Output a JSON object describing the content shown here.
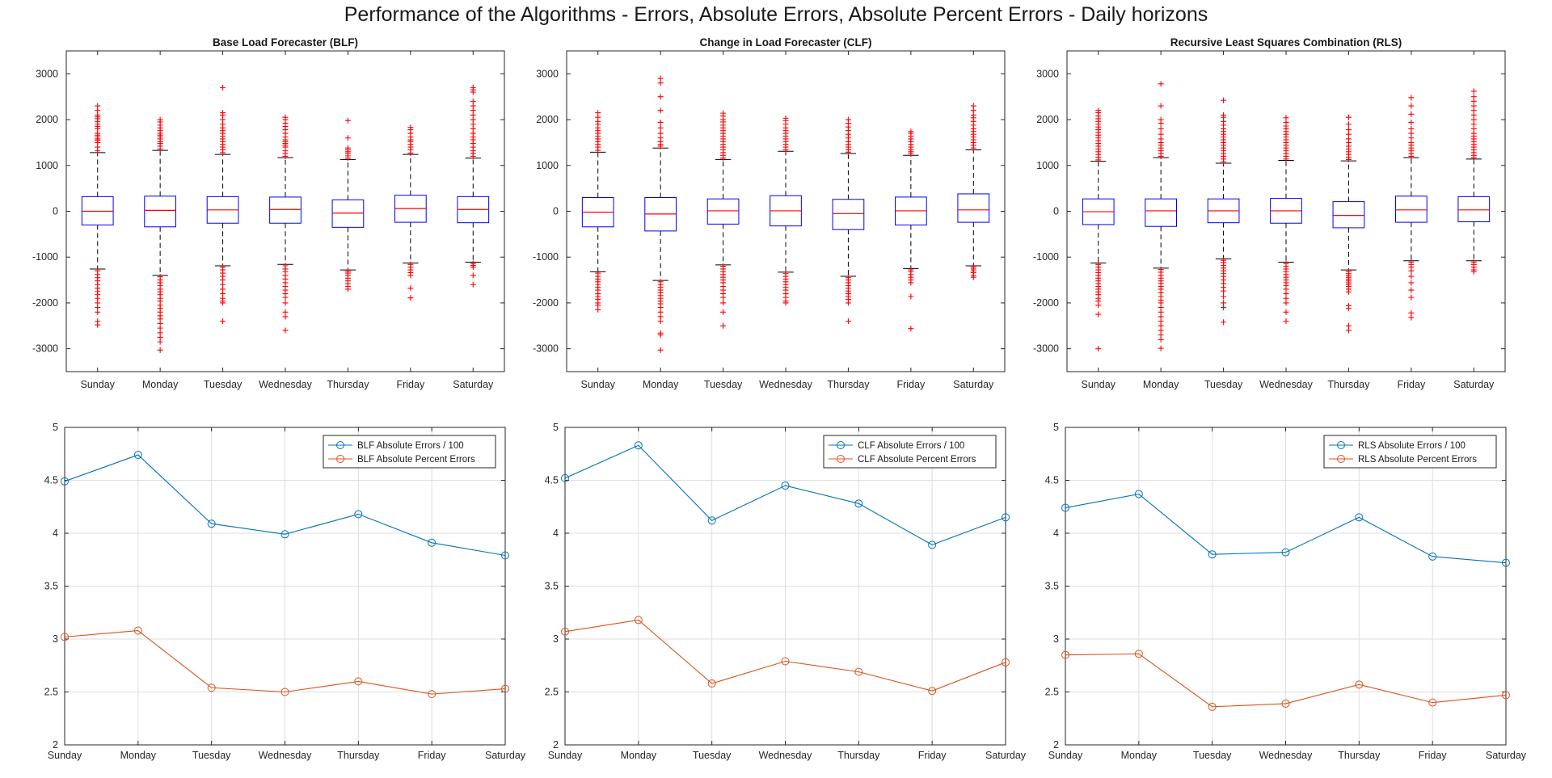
{
  "figure_title": "Performance of the Algorithms - Errors, Absolute Errors, Absolute Percent Errors - Daily horizons",
  "colors": {
    "box": "#0000ff",
    "median": "#ff0000",
    "outlier": "#ff0000",
    "whisker": "#000000",
    "series_abs": "#0072bd",
    "series_pct": "#d95319",
    "grid": "#dedede"
  },
  "chart_data": [
    {
      "type": "box",
      "title": "Base Load Forecaster (BLF)",
      "categories": [
        "Sunday",
        "Monday",
        "Tuesday",
        "Wednesday",
        "Thursday",
        "Friday",
        "Saturday"
      ],
      "ylim": [
        -3500,
        3500
      ],
      "yticks": [
        -3000,
        -2000,
        -1000,
        0,
        1000,
        2000,
        3000
      ],
      "grid": false,
      "boxes": [
        {
          "q1": -300,
          "median": 0,
          "q3": 320,
          "whisker_low": -1260,
          "whisker_high": 1280,
          "outliers_high": [
            1320,
            1400,
            1500,
            1550,
            1580,
            1620,
            1660,
            1700,
            1800,
            1850,
            1900,
            1960,
            2020,
            2060,
            2100,
            2200,
            2300
          ],
          "outliers_low": [
            -1300,
            -1380,
            -1450,
            -1520,
            -1600,
            -1680,
            -1750,
            -1820,
            -1900,
            -2000,
            -2100,
            -2200,
            -2400,
            -2480
          ]
        },
        {
          "q1": -340,
          "median": 20,
          "q3": 330,
          "whisker_low": -1400,
          "whisker_high": 1330,
          "outliers_high": [
            1360,
            1420,
            1480,
            1520,
            1580,
            1620,
            1660,
            1700,
            1760,
            1820,
            1880,
            1950,
            2000
          ],
          "outliers_low": [
            -1430,
            -1500,
            -1560,
            -1620,
            -1700,
            -1760,
            -1820,
            -1900,
            -1960,
            -2050,
            -2120,
            -2200,
            -2280,
            -2350,
            -2450,
            -2550,
            -2650,
            -2750,
            -2850,
            -3030
          ]
        },
        {
          "q1": -260,
          "median": 30,
          "q3": 320,
          "whisker_low": -1190,
          "whisker_high": 1240,
          "outliers_high": [
            1280,
            1340,
            1400,
            1460,
            1520,
            1580,
            1640,
            1700,
            1760,
            1820,
            1900,
            2000,
            2100,
            2150,
            2700
          ],
          "outliers_low": [
            -1220,
            -1280,
            -1350,
            -1420,
            -1500,
            -1600,
            -1700,
            -1800,
            -1900,
            -1960,
            -2000,
            -2400
          ]
        },
        {
          "q1": -260,
          "median": 40,
          "q3": 310,
          "whisker_low": -1160,
          "whisker_high": 1170,
          "outliers_high": [
            1200,
            1260,
            1320,
            1400,
            1440,
            1480,
            1520,
            1560,
            1620,
            1700,
            1780,
            1850,
            1920,
            2000,
            2050
          ],
          "outliers_low": [
            -1190,
            -1260,
            -1320,
            -1400,
            -1480,
            -1560,
            -1640,
            -1720,
            -1800,
            -1880,
            -2000,
            -2200,
            -2300,
            -2600
          ]
        },
        {
          "q1": -350,
          "median": -40,
          "q3": 250,
          "whisker_low": -1280,
          "whisker_high": 1130,
          "outliers_high": [
            1160,
            1210,
            1260,
            1300,
            1340,
            1380,
            1600,
            1980
          ],
          "outliers_low": [
            -1310,
            -1350,
            -1400,
            -1460,
            -1520,
            -1580,
            -1640,
            -1700
          ]
        },
        {
          "q1": -240,
          "median": 60,
          "q3": 350,
          "whisker_low": -1130,
          "whisker_high": 1240,
          "outliers_high": [
            1270,
            1340,
            1400,
            1460,
            1520,
            1560,
            1620,
            1700,
            1780,
            1830
          ],
          "outliers_low": [
            -1160,
            -1220,
            -1280,
            -1340,
            -1400,
            -1680,
            -1890
          ]
        },
        {
          "q1": -250,
          "median": 40,
          "q3": 320,
          "whisker_low": -1110,
          "whisker_high": 1160,
          "outliers_high": [
            1200,
            1260,
            1320,
            1400,
            1480,
            1560,
            1620,
            1700,
            1800,
            1900,
            2000,
            2100,
            2200,
            2300,
            2400,
            2600,
            2650,
            2700
          ],
          "outliers_low": [
            -1140,
            -1180,
            -1220,
            -1400,
            -1600
          ]
        }
      ]
    },
    {
      "type": "box",
      "title": "Change in Load Forecaster (CLF)",
      "categories": [
        "Sunday",
        "Monday",
        "Tuesday",
        "Wednesday",
        "Thursday",
        "Friday",
        "Saturday"
      ],
      "ylim": [
        -3500,
        3500
      ],
      "yticks": [
        -3000,
        -2000,
        -1000,
        0,
        1000,
        2000,
        3000
      ],
      "grid": false,
      "boxes": [
        {
          "q1": -340,
          "median": -20,
          "q3": 300,
          "whisker_low": -1320,
          "whisker_high": 1290,
          "outliers_high": [
            1330,
            1400,
            1460,
            1520,
            1580,
            1640,
            1700,
            1760,
            1820,
            1900,
            1960,
            2050,
            2150
          ],
          "outliers_low": [
            -1350,
            -1420,
            -1480,
            -1540,
            -1600,
            -1660,
            -1720,
            -1800,
            -1860,
            -1920,
            -2000,
            -2050,
            -2150
          ]
        },
        {
          "q1": -430,
          "median": -60,
          "q3": 300,
          "whisker_low": -1510,
          "whisker_high": 1380,
          "outliers_high": [
            1420,
            1460,
            1520,
            1600,
            1700,
            1820,
            1940,
            2200,
            2500,
            2800,
            2900
          ],
          "outliers_low": [
            -1540,
            -1600,
            -1660,
            -1720,
            -1780,
            -1840,
            -1900,
            -1960,
            -2020,
            -2100,
            -2200,
            -2300,
            -2400,
            -2660,
            -2700,
            -3030
          ]
        },
        {
          "q1": -280,
          "median": 10,
          "q3": 270,
          "whisker_low": -1170,
          "whisker_high": 1130,
          "outliers_high": [
            1160,
            1220,
            1280,
            1340,
            1400,
            1460,
            1520,
            1580,
            1640,
            1700,
            1760,
            1820,
            1880,
            1950,
            2000,
            2080,
            2140
          ],
          "outliers_low": [
            -1200,
            -1260,
            -1320,
            -1380,
            -1440,
            -1500,
            -1560,
            -1640,
            -1720,
            -1800,
            -1880,
            -2000,
            -2200,
            -2500
          ]
        },
        {
          "q1": -320,
          "median": 10,
          "q3": 340,
          "whisker_low": -1330,
          "whisker_high": 1310,
          "outliers_high": [
            1340,
            1400,
            1460,
            1520,
            1580,
            1640,
            1700,
            1760,
            1820,
            1900,
            1980,
            2030
          ],
          "outliers_low": [
            -1360,
            -1420,
            -1480,
            -1540,
            -1600,
            -1660,
            -1720,
            -1800,
            -1880,
            -1960,
            -2000
          ]
        },
        {
          "q1": -400,
          "median": -50,
          "q3": 260,
          "whisker_low": -1420,
          "whisker_high": 1260,
          "outliers_high": [
            1290,
            1340,
            1400,
            1460,
            1520,
            1600,
            1680,
            1760,
            1840,
            1920,
            2000
          ],
          "outliers_low": [
            -1450,
            -1500,
            -1560,
            -1620,
            -1680,
            -1740,
            -1800,
            -1860,
            -1920,
            -2000,
            -2400
          ]
        },
        {
          "q1": -300,
          "median": 10,
          "q3": 310,
          "whisker_low": -1250,
          "whisker_high": 1220,
          "outliers_high": [
            1260,
            1300,
            1340,
            1400,
            1460,
            1520,
            1580,
            1640,
            1700,
            1740
          ],
          "outliers_low": [
            -1280,
            -1320,
            -1380,
            -1440,
            -1500,
            -1560,
            -1860,
            -2560
          ]
        },
        {
          "q1": -240,
          "median": 30,
          "q3": 380,
          "whisker_low": -1190,
          "whisker_high": 1340,
          "outliers_high": [
            1380,
            1440,
            1500,
            1560,
            1620,
            1680,
            1740,
            1800,
            1880,
            1960,
            2040,
            2100,
            2200,
            2300
          ],
          "outliers_low": [
            -1220,
            -1260,
            -1300,
            -1340,
            -1400,
            -1440
          ]
        }
      ]
    },
    {
      "type": "box",
      "title": "Recursive Least Squares Combination (RLS)",
      "categories": [
        "Sunday",
        "Monday",
        "Tuesday",
        "Wednesday",
        "Thursday",
        "Friday",
        "Saturday"
      ],
      "ylim": [
        -3500,
        3500
      ],
      "yticks": [
        -3000,
        -2000,
        -1000,
        0,
        1000,
        2000,
        3000
      ],
      "grid": false,
      "boxes": [
        {
          "q1": -290,
          "median": -10,
          "q3": 270,
          "whisker_low": -1130,
          "whisker_high": 1090,
          "outliers_high": [
            1120,
            1180,
            1240,
            1300,
            1360,
            1420,
            1480,
            1540,
            1600,
            1660,
            1720,
            1780,
            1840,
            1900,
            1960,
            2020,
            2080,
            2150,
            2200
          ],
          "outliers_low": [
            -1160,
            -1220,
            -1280,
            -1340,
            -1400,
            -1460,
            -1520,
            -1580,
            -1640,
            -1700,
            -1760,
            -1820,
            -1900,
            -1960,
            -2050,
            -2250,
            -3000
          ]
        },
        {
          "q1": -330,
          "median": 10,
          "q3": 270,
          "whisker_low": -1240,
          "whisker_high": 1170,
          "outliers_high": [
            1200,
            1260,
            1320,
            1380,
            1440,
            1500,
            1580,
            1680,
            1800,
            1920,
            2000,
            2300,
            2780
          ],
          "outliers_low": [
            -1270,
            -1330,
            -1400,
            -1460,
            -1520,
            -1580,
            -1640,
            -1700,
            -1780,
            -1860,
            -1940,
            -2000,
            -2100,
            -2200,
            -2300,
            -2400,
            -2500,
            -2600,
            -2700,
            -2800,
            -2990
          ]
        },
        {
          "q1": -250,
          "median": 10,
          "q3": 270,
          "whisker_low": -1040,
          "whisker_high": 1050,
          "outliers_high": [
            1080,
            1140,
            1200,
            1260,
            1320,
            1380,
            1440,
            1500,
            1560,
            1620,
            1680,
            1740,
            1800,
            1880,
            1960,
            2050,
            2100,
            2420
          ],
          "outliers_low": [
            -1070,
            -1120,
            -1180,
            -1240,
            -1300,
            -1360,
            -1420,
            -1500,
            -1580,
            -1660,
            -1740,
            -1860,
            -2000,
            -2100,
            -2420
          ]
        },
        {
          "q1": -260,
          "median": 10,
          "q3": 280,
          "whisker_low": -1110,
          "whisker_high": 1110,
          "outliers_high": [
            1140,
            1200,
            1260,
            1320,
            1380,
            1440,
            1500,
            1560,
            1620,
            1680,
            1740,
            1800,
            1860,
            1940,
            2040
          ],
          "outliers_low": [
            -1140,
            -1200,
            -1260,
            -1320,
            -1380,
            -1440,
            -1500,
            -1560,
            -1620,
            -1700,
            -1800,
            -1900,
            -2000,
            -2200,
            -2400
          ]
        },
        {
          "q1": -360,
          "median": -90,
          "q3": 210,
          "whisker_low": -1280,
          "whisker_high": 1100,
          "outliers_high": [
            1130,
            1180,
            1240,
            1300,
            1360,
            1420,
            1500,
            1580,
            1680,
            1780,
            1900,
            2050
          ],
          "outliers_low": [
            -1310,
            -1360,
            -1400,
            -1440,
            -1480,
            -1520,
            -1560,
            -1600,
            -1640,
            -1700,
            -1760,
            -2060,
            -2120,
            -2500,
            -2600
          ]
        },
        {
          "q1": -240,
          "median": 30,
          "q3": 330,
          "whisker_low": -1080,
          "whisker_high": 1170,
          "outliers_high": [
            1200,
            1260,
            1320,
            1380,
            1440,
            1500,
            1600,
            1700,
            1800,
            1940,
            2120,
            2300,
            2480
          ],
          "outliers_low": [
            -1110,
            -1160,
            -1220,
            -1300,
            -1420,
            -1560,
            -1720,
            -1880,
            -2220,
            -2320
          ]
        },
        {
          "q1": -230,
          "median": 30,
          "q3": 320,
          "whisker_low": -1080,
          "whisker_high": 1140,
          "outliers_high": [
            1170,
            1220,
            1280,
            1340,
            1400,
            1460,
            1520,
            1580,
            1640,
            1700,
            1800,
            1900,
            2000,
            2100,
            2200,
            2300,
            2400,
            2500,
            2620
          ],
          "outliers_low": [
            -1110,
            -1160,
            -1220,
            -1280,
            -1320
          ]
        }
      ]
    },
    {
      "type": "line",
      "x": [
        "Sunday",
        "Monday",
        "Tuesday",
        "Wednesday",
        "Thursday",
        "Friday",
        "Saturday"
      ],
      "ylim": [
        2,
        5
      ],
      "yticks": [
        "2",
        "2.5",
        "3",
        "3.5",
        "4",
        "4.5",
        "5"
      ],
      "grid": true,
      "legend": "top-right",
      "series": [
        {
          "name": "BLF Absolute Errors / 100",
          "values": [
            4.49,
            4.74,
            4.09,
            3.99,
            4.18,
            3.91,
            3.79
          ]
        },
        {
          "name": "BLF Absolute Percent Errors",
          "values": [
            3.02,
            3.08,
            2.54,
            2.5,
            2.6,
            2.48,
            2.53
          ]
        }
      ]
    },
    {
      "type": "line",
      "x": [
        "Sunday",
        "Monday",
        "Tuesday",
        "Wednesday",
        "Thursday",
        "Friday",
        "Saturday"
      ],
      "ylim": [
        2,
        5
      ],
      "yticks": [
        "2",
        "2.5",
        "3",
        "3.5",
        "4",
        "4.5",
        "5"
      ],
      "grid": true,
      "legend": "top-right",
      "series": [
        {
          "name": "CLF Absolute Errors / 100",
          "values": [
            4.52,
            4.83,
            4.12,
            4.45,
            4.28,
            3.89,
            4.15
          ]
        },
        {
          "name": "CLF Absolute Percent Errors",
          "values": [
            3.07,
            3.18,
            2.58,
            2.79,
            2.69,
            2.51,
            2.78
          ]
        }
      ]
    },
    {
      "type": "line",
      "x": [
        "Sunday",
        "Monday",
        "Tuesday",
        "Wednesday",
        "Thursday",
        "Friday",
        "Saturday"
      ],
      "ylim": [
        2,
        5
      ],
      "yticks": [
        "2",
        "2.5",
        "3",
        "3.5",
        "4",
        "4.5",
        "5"
      ],
      "grid": true,
      "legend": "top-right",
      "series": [
        {
          "name": "RLS Absolute Errors / 100",
          "values": [
            4.24,
            4.37,
            3.8,
            3.82,
            4.15,
            3.78,
            3.72
          ]
        },
        {
          "name": "RLS Absolute Percent Errors",
          "values": [
            2.85,
            2.86,
            2.36,
            2.39,
            2.57,
            2.4,
            2.47
          ]
        }
      ]
    }
  ]
}
